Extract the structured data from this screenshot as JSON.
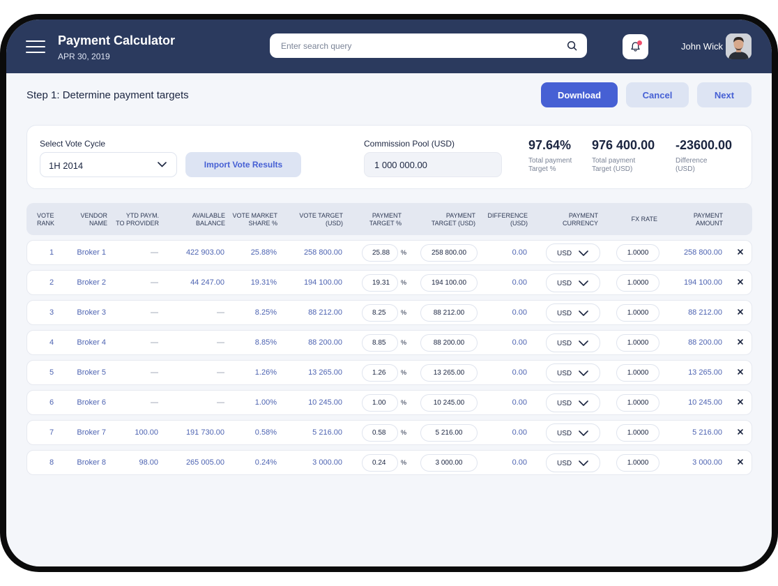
{
  "header": {
    "title": "Payment Calculator",
    "date": "APR 30, 2019",
    "search_placeholder": "Enter search query",
    "user_name": "John Wick"
  },
  "step": {
    "title": "Step 1: Determine payment targets",
    "download_label": "Download",
    "cancel_label": "Cancel",
    "next_label": "Next"
  },
  "config": {
    "vote_cycle_label": "Select Vote Cycle",
    "vote_cycle_value": "1H 2014",
    "import_label": "Import Vote Results",
    "pool_label": "Commission Pool (USD)",
    "pool_value": "1 000 000.00",
    "stats": [
      {
        "value": "97.64%",
        "caption": "Total payment Target %"
      },
      {
        "value": "976 400.00",
        "caption": "Total payment Target (USD)"
      },
      {
        "value": "-23600.00",
        "caption": "Difference (USD)"
      }
    ]
  },
  "table": {
    "headers": {
      "rank": [
        "VOTE",
        "RANK"
      ],
      "vendor": [
        "VENDOR",
        "NAME"
      ],
      "ytd": [
        "YTD PAYM.",
        "TO PROVIDER"
      ],
      "balance": [
        "AVAILABLE",
        "BALANCE"
      ],
      "share": [
        "VOTE MARKET",
        "SHARE %"
      ],
      "target": [
        "VOTE TARGET",
        "(USD)"
      ],
      "pt": [
        "PAYMENT",
        "TARGET %"
      ],
      "ptu": [
        "PAYMENT",
        "TARGET (USD)"
      ],
      "diff": [
        "DIFFERENCE",
        "(USD)"
      ],
      "cur": [
        "PAYMENT",
        "CURRENCY"
      ],
      "fx": [
        "FX RATE"
      ],
      "amount": [
        "PAYMENT",
        "AMOUNT"
      ]
    },
    "percent_sign": "%",
    "rows": [
      {
        "rank": "1",
        "vendor": "Broker 1",
        "ytd": "—",
        "balance": "422 903.00",
        "share": "25.88%",
        "target": "258 800.00",
        "pt": "25.88",
        "ptu": "258 800.00",
        "diff": "0.00",
        "cur": "USD",
        "fx": "1.0000",
        "amount": "258 800.00"
      },
      {
        "rank": "2",
        "vendor": "Broker 2",
        "ytd": "—",
        "balance": "44 247.00",
        "share": "19.31%",
        "target": "194 100.00",
        "pt": "19.31",
        "ptu": "194 100.00",
        "diff": "0.00",
        "cur": "USD",
        "fx": "1.0000",
        "amount": "194 100.00"
      },
      {
        "rank": "3",
        "vendor": "Broker 3",
        "ytd": "—",
        "balance": "—",
        "share": "8.25%",
        "target": "88 212.00",
        "pt": "8.25",
        "ptu": "88 212.00",
        "diff": "0.00",
        "cur": "USD",
        "fx": "1.0000",
        "amount": "88 212.00"
      },
      {
        "rank": "4",
        "vendor": "Broker 4",
        "ytd": "—",
        "balance": "—",
        "share": "8.85%",
        "target": "88 200.00",
        "pt": "8.85",
        "ptu": "88 200.00",
        "diff": "0.00",
        "cur": "USD",
        "fx": "1.0000",
        "amount": "88 200.00"
      },
      {
        "rank": "5",
        "vendor": "Broker 5",
        "ytd": "—",
        "balance": "—",
        "share": "1.26%",
        "target": "13 265.00",
        "pt": "1.26",
        "ptu": "13 265.00",
        "diff": "0.00",
        "cur": "USD",
        "fx": "1.0000",
        "amount": "13 265.00"
      },
      {
        "rank": "6",
        "vendor": "Broker 6",
        "ytd": "—",
        "balance": "—",
        "share": "1.00%",
        "target": "10 245.00",
        "pt": "1.00",
        "ptu": "10 245.00",
        "diff": "0.00",
        "cur": "USD",
        "fx": "1.0000",
        "amount": "10 245.00"
      },
      {
        "rank": "7",
        "vendor": "Broker 7",
        "ytd": "100.00",
        "balance": "191 730.00",
        "share": "0.58%",
        "target": "5 216.00",
        "pt": "0.58",
        "ptu": "5 216.00",
        "diff": "0.00",
        "cur": "USD",
        "fx": "1.0000",
        "amount": "5 216.00"
      },
      {
        "rank": "8",
        "vendor": "Broker 8",
        "ytd": "98.00",
        "balance": "265 005.00",
        "share": "0.24%",
        "target": "3 000.00",
        "pt": "0.24",
        "ptu": "3 000.00",
        "diff": "0.00",
        "cur": "USD",
        "fx": "1.0000",
        "amount": "3 000.00"
      }
    ]
  },
  "icons": {
    "menu": "menu-icon",
    "search": "search-icon",
    "bell": "bell-icon",
    "chevron": "chevron-down-icon",
    "remove": "close-icon"
  },
  "colors": {
    "header_bg": "#2b3a5e",
    "accent": "#4660d4",
    "accent_soft": "#dde4f3",
    "value_text": "#4e64b2",
    "notification_dot": "#f0506e"
  }
}
